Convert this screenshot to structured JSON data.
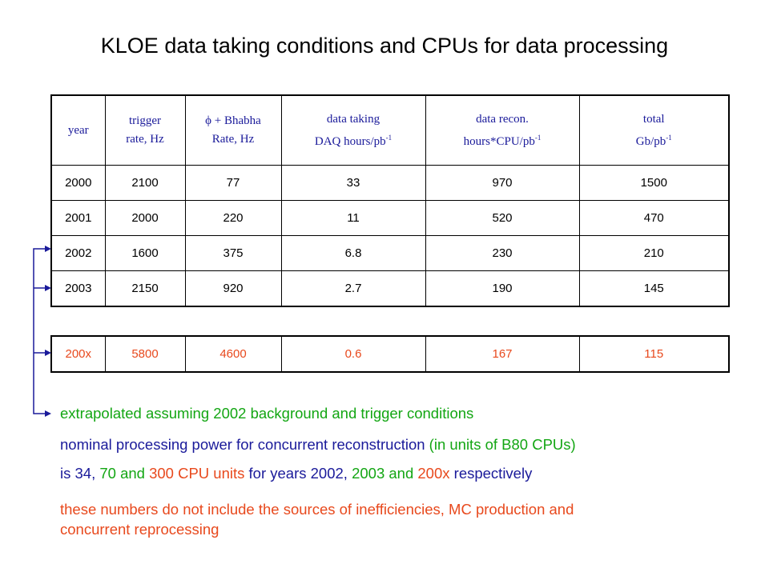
{
  "title": "KLOE data taking conditions and CPUs for data processing",
  "table": {
    "headers": [
      {
        "line1": "year",
        "line2": ""
      },
      {
        "line1": "trigger",
        "line2": "rate, Hz"
      },
      {
        "line1": "ϕ + Bhabha",
        "line2": "Rate, Hz"
      },
      {
        "line1": "data taking",
        "line2": "DAQ hours/pb",
        "sup": "-1"
      },
      {
        "line1": "data recon.",
        "line2": "hours*CPU/pb",
        "sup": "-1"
      },
      {
        "line1": "total",
        "line2": "Gb/pb",
        "sup": "-1"
      }
    ],
    "rows": [
      [
        "2000",
        "2100",
        "77",
        "33",
        "970",
        "1500"
      ],
      [
        "2001",
        "2000",
        "220",
        "11",
        "520",
        "470"
      ],
      [
        "2002",
        "1600",
        "375",
        "6.8",
        "230",
        "210"
      ],
      [
        "2003",
        "2150",
        "920",
        "2.7",
        "190",
        "145"
      ]
    ]
  },
  "extrapolated_row": [
    "200x",
    "5800",
    "4600",
    "0.6",
    "167",
    "115"
  ],
  "notes": {
    "extrapolated": "extrapolated assuming 2002 background and trigger conditions",
    "nominal_a": "nominal processing power for concurrent reconstruction",
    "nominal_b": " (in units of B80 CPUs)",
    "line3": {
      "p1": "is 34, ",
      "p2": "70 and ",
      "p3": "300 CPU units ",
      "p4": "for years 2002, ",
      "p5": "2003 and ",
      "p6": "200x ",
      "p7": "respectively"
    },
    "ineff_1": "these numbers do not include the sources of inefficiencies, MC production and",
    "ineff_2": "concurrent reprocessing"
  },
  "colors": {
    "green": "#13a613",
    "blue": "#1a1a9a",
    "orange": "#e8491d"
  }
}
